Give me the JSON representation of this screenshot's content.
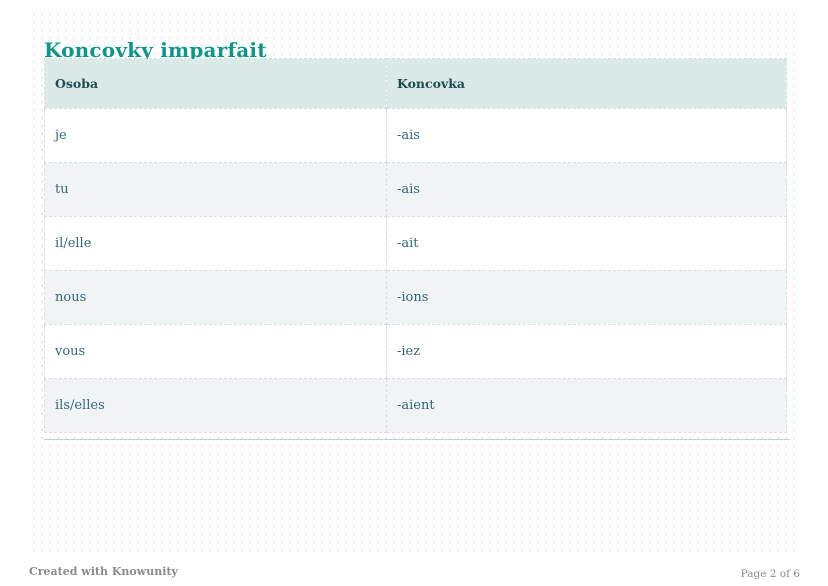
{
  "page": {
    "title": "Koncovky imparfait",
    "footer_left": "Created with Knowunity",
    "footer_right": "Page 2 of 6"
  },
  "table": {
    "columns": [
      "Osoba",
      "Koncovka"
    ],
    "rows": [
      {
        "osoba": "je",
        "koncovka": "-ais"
      },
      {
        "osoba": "tu",
        "koncovka": "-ais"
      },
      {
        "osoba": "il/elle",
        "koncovka": "-ait"
      },
      {
        "osoba": "nous",
        "koncovka": "-ions"
      },
      {
        "osoba": "vous",
        "koncovka": "-iez"
      },
      {
        "osoba": "ils/elles",
        "koncovka": "-aient"
      }
    ]
  },
  "colors": {
    "title_teal": "#12948c",
    "header_bg": "#daeae6",
    "header_text": "#1d4b52",
    "cell_text": "#33677a",
    "alt_row_bg": "#f0f4f5",
    "dashed_border": "#d7dee1",
    "rule_line": "#bcd3d3",
    "footer_text": "#8a8a8a",
    "dot_color": "#e5eae9"
  }
}
